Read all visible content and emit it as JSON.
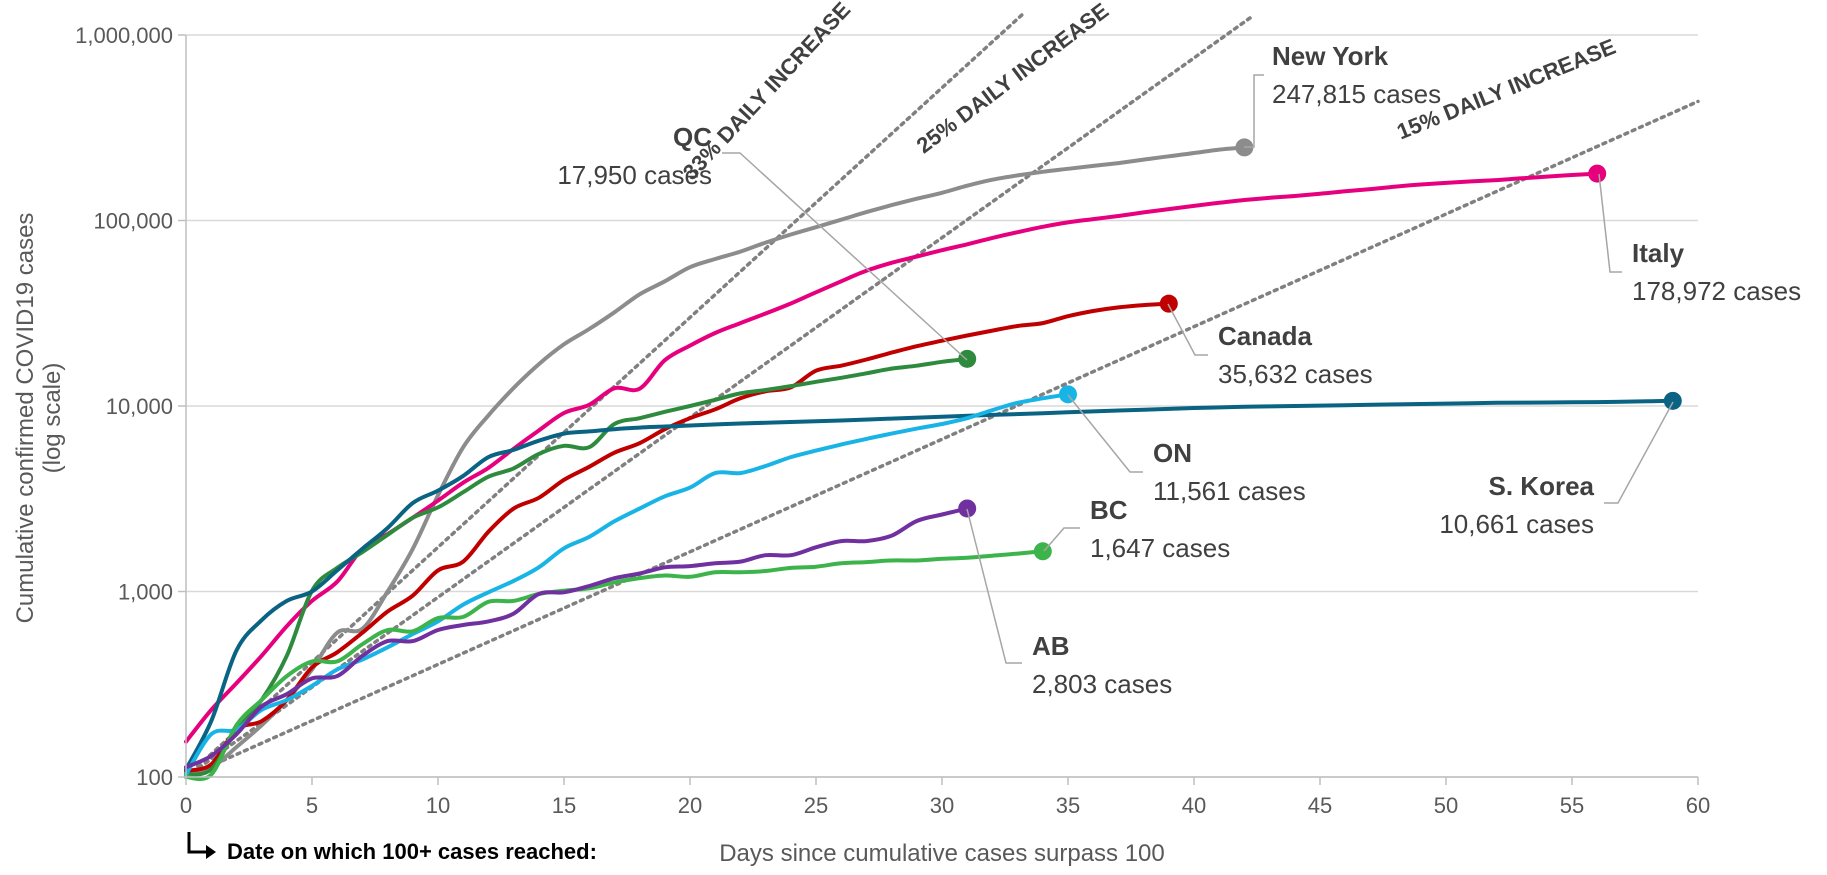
{
  "chart_data": {
    "type": "line",
    "title": "",
    "xlabel": "Days since cumulative cases surpass 100",
    "ylabel": [
      "Cumulative confirmed COVID19 cases",
      "(log scale)"
    ],
    "y_scale": "log",
    "xlim": [
      0,
      60
    ],
    "ylim": [
      100,
      1000000
    ],
    "x_ticks": [
      0,
      5,
      10,
      15,
      20,
      25,
      30,
      35,
      40,
      45,
      50,
      55,
      60
    ],
    "y_ticks": [
      100,
      1000,
      10000,
      100000,
      1000000
    ],
    "y_tick_labels": [
      "100",
      "1,000",
      "10,000",
      "100,000",
      "1,000,000"
    ],
    "grid": "horizontal",
    "footnote": "Date on which 100+ cases reached:",
    "reference_lines": [
      {
        "label": "33% DAILY INCREASE",
        "rate": 0.33
      },
      {
        "label": "25% DAILY INCREASE",
        "rate": 0.25
      },
      {
        "label": "15% DAILY INCREASE",
        "rate": 0.15
      }
    ],
    "series": [
      {
        "name": "New York",
        "cases_label": "247,815 cases",
        "color": "#8c8c8c",
        "x": [
          0,
          1,
          2,
          3,
          4,
          5,
          6,
          7,
          8,
          9,
          10,
          11,
          12,
          13,
          14,
          15,
          16,
          17,
          18,
          19,
          20,
          21,
          22,
          23,
          24,
          25,
          26,
          27,
          28,
          29,
          30,
          31,
          32,
          33,
          34,
          35,
          36,
          37,
          38,
          39,
          40,
          41,
          42
        ],
        "y": [
          105,
          112,
          145,
          190,
          260,
          380,
          600,
          630,
          1000,
          1700,
          3300,
          6000,
          8900,
          12500,
          16800,
          21500,
          26000,
          32000,
          40000,
          47000,
          56000,
          62000,
          68000,
          76000,
          84000,
          92000,
          101000,
          111000,
          121000,
          131000,
          141000,
          154000,
          166000,
          175000,
          183000,
          190000,
          197000,
          204000,
          213000,
          222000,
          231000,
          241000,
          247815
        ]
      },
      {
        "name": "Italy",
        "cases_label": "178,972 cases",
        "color": "#e6007e",
        "x": [
          0,
          1,
          2,
          3,
          4,
          5,
          6,
          7,
          8,
          9,
          10,
          11,
          12,
          13,
          14,
          15,
          16,
          17,
          18,
          19,
          20,
          21,
          22,
          23,
          24,
          25,
          26,
          27,
          28,
          29,
          30,
          31,
          32,
          33,
          34,
          35,
          36,
          37,
          38,
          39,
          40,
          41,
          42,
          43,
          44,
          45,
          46,
          47,
          48,
          49,
          50,
          51,
          52,
          53,
          54,
          55,
          56
        ],
        "y": [
          155,
          230,
          320,
          450,
          650,
          890,
          1130,
          1700,
          2040,
          2500,
          3090,
          3860,
          4640,
          5880,
          7380,
          9170,
          10150,
          12460,
          12400,
          17660,
          21160,
          24750,
          27980,
          31510,
          35710,
          41040,
          47020,
          53580,
          59140,
          63930,
          69180,
          74390,
          80540,
          86500,
          92470,
          97690,
          101740,
          105790,
          110570,
          115240,
          119830,
          124630,
          128950,
          132550,
          135580,
          139420,
          143630,
          147580,
          152270,
          156360,
          159520,
          162490,
          165150,
          168940,
          172430,
          175930,
          178972
        ]
      },
      {
        "name": "Canada",
        "cases_label": "35,632 cases",
        "color": "#c00000",
        "x": [
          0,
          1,
          2,
          3,
          4,
          5,
          6,
          7,
          8,
          9,
          10,
          11,
          12,
          13,
          14,
          15,
          16,
          17,
          18,
          19,
          20,
          21,
          22,
          23,
          24,
          25,
          26,
          27,
          28,
          29,
          30,
          31,
          32,
          33,
          34,
          35,
          36,
          37,
          38,
          39
        ],
        "y": [
          108,
          117,
          180,
          200,
          260,
          390,
          470,
          600,
          780,
          950,
          1300,
          1450,
          2100,
          2800,
          3200,
          4000,
          4700,
          5600,
          6300,
          7500,
          8600,
          9600,
          11000,
          12000,
          12600,
          15500,
          16500,
          17800,
          19400,
          21000,
          22500,
          24000,
          25500,
          27000,
          28000,
          30500,
          32500,
          34000,
          35000,
          35632
        ]
      },
      {
        "name": "QC",
        "cases_label": "17,950 cases",
        "color": "#2e8b3e",
        "x": [
          0,
          1,
          2,
          3,
          4,
          5,
          6,
          7,
          8,
          9,
          10,
          11,
          12,
          13,
          14,
          15,
          16,
          17,
          18,
          19,
          20,
          21,
          22,
          23,
          24,
          25,
          26,
          27,
          28,
          29,
          30,
          31
        ],
        "y": [
          103,
          110,
          180,
          260,
          450,
          1010,
          1340,
          1630,
          2020,
          2500,
          2840,
          3430,
          4160,
          4610,
          5520,
          6100,
          6000,
          8000,
          8600,
          9300,
          10000,
          10800,
          11700,
          12200,
          12800,
          13500,
          14200,
          15000,
          15900,
          16500,
          17300,
          17950
        ]
      },
      {
        "name": "S. Korea",
        "cases_label": "10,661 cases",
        "color": "#0a6382",
        "x": [
          0,
          1,
          2,
          3,
          4,
          5,
          6,
          7,
          8,
          9,
          10,
          11,
          12,
          13,
          14,
          15,
          16,
          17,
          18,
          19,
          20,
          22,
          24,
          26,
          28,
          30,
          32,
          34,
          36,
          38,
          40,
          42,
          44,
          46,
          48,
          50,
          52,
          54,
          56,
          58,
          59
        ],
        "y": [
          110,
          200,
          480,
          700,
          890,
          1000,
          1300,
          1700,
          2200,
          3000,
          3500,
          4200,
          5300,
          5800,
          6500,
          7100,
          7300,
          7500,
          7650,
          7750,
          7850,
          8050,
          8200,
          8350,
          8550,
          8750,
          8950,
          9150,
          9350,
          9550,
          9750,
          9900,
          10000,
          10100,
          10200,
          10300,
          10400,
          10450,
          10500,
          10600,
          10661
        ]
      },
      {
        "name": "ON",
        "cases_label": "11,561 cases",
        "color": "#18b4e6",
        "x": [
          0,
          1,
          2,
          3,
          4,
          5,
          6,
          7,
          8,
          9,
          10,
          11,
          12,
          13,
          14,
          15,
          16,
          17,
          18,
          19,
          20,
          21,
          22,
          23,
          24,
          25,
          26,
          27,
          28,
          29,
          30,
          31,
          32,
          33,
          34,
          35
        ],
        "y": [
          103,
          170,
          180,
          230,
          260,
          310,
          380,
          430,
          500,
          590,
          690,
          850,
          990,
          1140,
          1350,
          1710,
          1970,
          2390,
          2800,
          3260,
          3630,
          4350,
          4350,
          4750,
          5300,
          5750,
          6200,
          6650,
          7100,
          7550,
          8000,
          8600,
          9500,
          10400,
          11000,
          11561
        ]
      },
      {
        "name": "BC",
        "cases_label": "1,647 cases",
        "color": "#3cb44b",
        "x": [
          0,
          1,
          2,
          3,
          4,
          5,
          6,
          7,
          8,
          9,
          10,
          11,
          12,
          13,
          14,
          15,
          16,
          17,
          18,
          19,
          20,
          21,
          22,
          23,
          24,
          25,
          26,
          27,
          28,
          29,
          30,
          31,
          32,
          33,
          34
        ],
        "y": [
          100,
          103,
          190,
          260,
          350,
          420,
          420,
          520,
          620,
          610,
          720,
          730,
          880,
          890,
          970,
          1010,
          1040,
          1120,
          1180,
          1220,
          1200,
          1270,
          1270,
          1290,
          1340,
          1360,
          1420,
          1440,
          1470,
          1470,
          1500,
          1520,
          1560,
          1600,
          1647
        ]
      },
      {
        "name": "AB",
        "cases_label": "2,803 cases",
        "color": "#7030a0",
        "x": [
          0,
          1,
          2,
          3,
          4,
          5,
          6,
          7,
          8,
          9,
          10,
          11,
          12,
          13,
          14,
          15,
          16,
          17,
          18,
          19,
          20,
          21,
          22,
          23,
          24,
          25,
          26,
          27,
          28,
          29,
          30,
          31
        ],
        "y": [
          113,
          130,
          170,
          240,
          280,
          340,
          350,
          450,
          540,
          540,
          620,
          660,
          690,
          760,
          970,
          990,
          1070,
          1180,
          1250,
          1350,
          1370,
          1420,
          1450,
          1570,
          1570,
          1730,
          1870,
          1870,
          2000,
          2400,
          2600,
          2803
        ]
      }
    ],
    "labels": {
      "New York": {
        "name": "New York",
        "cases": "247,815 cases",
        "align": "start"
      },
      "Italy": {
        "name": "Italy",
        "cases": "178,972 cases",
        "align": "start"
      },
      "Canada": {
        "name": "Canada",
        "cases": "35,632 cases",
        "align": "start"
      },
      "QC": {
        "name": "QC",
        "cases": "17,950 cases",
        "align": "end"
      },
      "ON": {
        "name": "ON",
        "cases": "11,561 cases",
        "align": "start"
      },
      "S. Korea": {
        "name": "S. Korea",
        "cases": "10,661 cases",
        "align": "end"
      },
      "BC": {
        "name": "BC",
        "cases": "1,647 cases",
        "align": "start"
      },
      "AB": {
        "name": "AB",
        "cases": "2,803 cases",
        "align": "start"
      }
    }
  }
}
